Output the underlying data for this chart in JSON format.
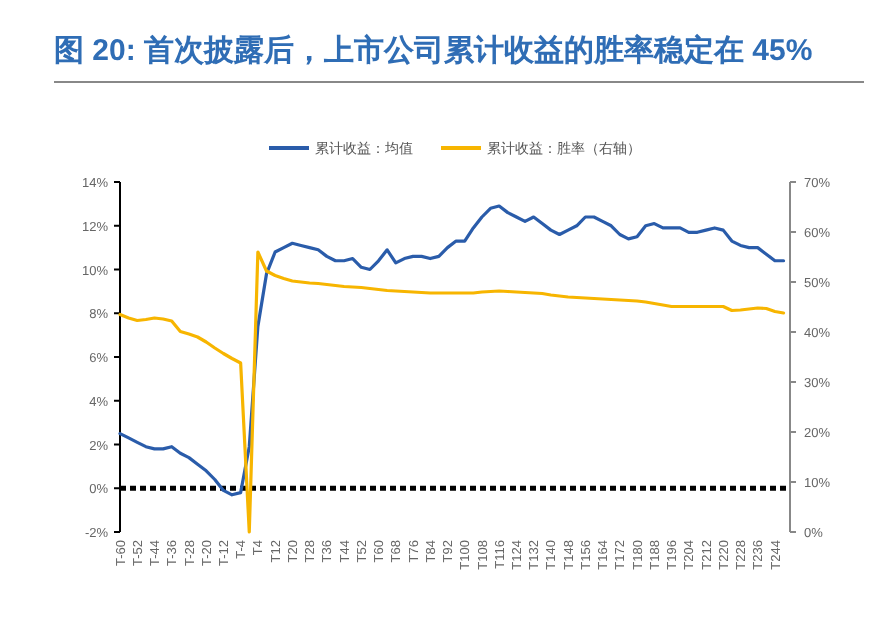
{
  "chart_data": {
    "type": "line",
    "title": "图 20: 首次披露后，上市公司累计收益的胜率稳定在 45%",
    "categories": [
      "T-60",
      null,
      "T-52",
      null,
      "T-44",
      null,
      "T-36",
      null,
      "T-28",
      null,
      "T-20",
      null,
      "T-12",
      null,
      "T-4",
      null,
      "T4",
      null,
      "T12",
      null,
      "T20",
      null,
      "T28",
      null,
      "T36",
      null,
      "T44",
      null,
      "T52",
      null,
      "T60",
      null,
      "T68",
      null,
      "T76",
      null,
      "T84",
      null,
      "T92",
      null,
      "T100",
      null,
      "T108",
      null,
      "T116",
      null,
      "T124",
      null,
      "T132",
      null,
      "T140",
      null,
      "T148",
      null,
      "T156",
      null,
      "T164",
      null,
      "T172",
      null,
      "T180",
      null,
      "T188",
      null,
      "T196",
      null,
      "T204",
      null,
      "T212",
      null,
      "T220",
      null,
      "T228",
      null,
      "T236",
      null,
      "T244",
      null
    ],
    "ylim": [
      -2,
      14
    ],
    "yticks": [
      {
        "value": -2,
        "label": "-2%"
      },
      {
        "value": 0,
        "label": "0%"
      },
      {
        "value": 2,
        "label": "2%"
      },
      {
        "value": 4,
        "label": "4%"
      },
      {
        "value": 6,
        "label": "6%"
      },
      {
        "value": 8,
        "label": "8%"
      },
      {
        "value": 10,
        "label": "10%"
      },
      {
        "value": 12,
        "label": "12%"
      },
      {
        "value": 14,
        "label": "14%"
      }
    ],
    "y2lim": [
      0,
      70
    ],
    "y2ticks": [
      {
        "value": 0,
        "label": "0%"
      },
      {
        "value": 10,
        "label": "10%"
      },
      {
        "value": 20,
        "label": "20%"
      },
      {
        "value": 30,
        "label": "30%"
      },
      {
        "value": 40,
        "label": "40%"
      },
      {
        "value": 50,
        "label": "50%"
      },
      {
        "value": 60,
        "label": "60%"
      },
      {
        "value": 70,
        "label": "70%"
      }
    ],
    "legend": "top",
    "ref_lines": [
      {
        "axis": "y",
        "value": 0,
        "color": "#000000",
        "line_style": "dashed"
      }
    ],
    "series": [
      {
        "name": "累计收益：均值",
        "color": "#2a5caa",
        "values": [
          2.5,
          2.3,
          2.1,
          1.9,
          1.8,
          1.8,
          1.9,
          1.6,
          1.4,
          1.1,
          0.8,
          0.4,
          -0.1,
          -0.3,
          -0.2,
          1.9,
          7.4,
          9.8,
          10.8,
          11.0,
          11.2,
          11.1,
          11.0,
          10.9,
          10.6,
          10.4,
          10.4,
          10.5,
          10.1,
          10.0,
          10.4,
          10.9,
          10.3,
          10.5,
          10.6,
          10.6,
          10.5,
          10.6,
          11.0,
          11.3,
          11.3,
          11.9,
          12.4,
          12.8,
          12.9,
          12.6,
          12.4,
          12.2,
          12.4,
          12.1,
          11.8,
          11.6,
          11.8,
          12.0,
          12.4,
          12.4,
          12.2,
          12.0,
          11.6,
          11.4,
          11.5,
          12.0,
          12.1,
          11.9,
          11.9,
          11.9,
          11.7,
          11.7,
          11.8,
          11.9,
          11.8,
          11.3,
          11.1,
          11.0,
          11.0,
          10.7,
          10.4,
          10.4
        ]
      },
      {
        "name": "累计收益：胜率（右轴）",
        "color": "#f7b500",
        "axis": "y2",
        "values": [
          43.5,
          42.8,
          42.3,
          42.5,
          42.8,
          42.6,
          42.2,
          40.1,
          39.6,
          39.0,
          38.0,
          36.8,
          35.7,
          34.7,
          33.8,
          0,
          56,
          52.2,
          51.3,
          50.7,
          50.2,
          50.0,
          49.8,
          49.7,
          49.5,
          49.3,
          49.1,
          49.0,
          48.9,
          48.7,
          48.5,
          48.3,
          48.2,
          48.1,
          48.0,
          47.9,
          47.8,
          47.8,
          47.8,
          47.8,
          47.8,
          47.8,
          48.0,
          48.1,
          48.2,
          48.1,
          48.0,
          47.9,
          47.8,
          47.7,
          47.4,
          47.2,
          47.0,
          46.9,
          46.8,
          46.7,
          46.6,
          46.5,
          46.4,
          46.3,
          46.2,
          46.0,
          45.7,
          45.4,
          45.1,
          45.1,
          45.1,
          45.1,
          45.1,
          45.1,
          45.1,
          44.3,
          44.4,
          44.6,
          44.8,
          44.7,
          44.1,
          43.8
        ]
      }
    ]
  }
}
